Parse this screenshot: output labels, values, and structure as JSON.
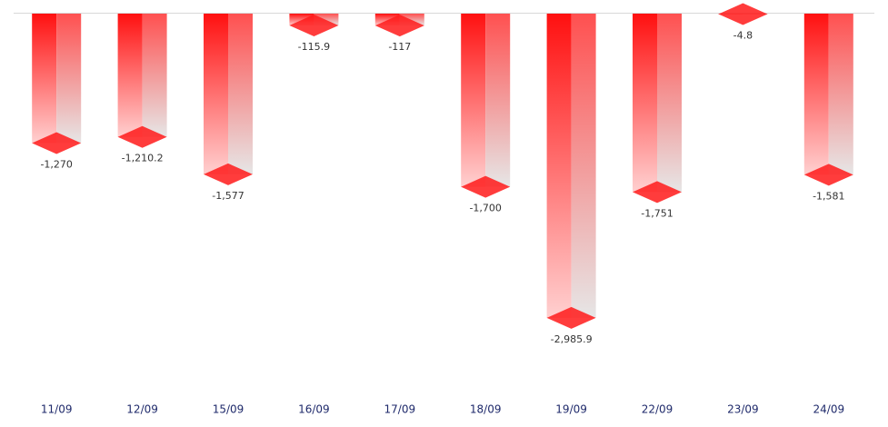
{
  "chart_data": {
    "type": "bar",
    "categories": [
      "11/09",
      "12/09",
      "15/09",
      "16/09",
      "17/09",
      "18/09",
      "19/09",
      "22/09",
      "23/09",
      "24/09"
    ],
    "values": [
      -1270,
      -1210.2,
      -1577,
      -115.9,
      -117,
      -1700,
      -2985.9,
      -1751,
      -4.8,
      -1581
    ],
    "value_labels": [
      "-1,270",
      "-1,210.2",
      "-1,577",
      "-115.9",
      "-117",
      "-1,700",
      "-2,985.9",
      "-1,751",
      "-4.8",
      "-1,581"
    ],
    "color": "#ff1a1a",
    "ylim": [
      -3700,
      0
    ]
  }
}
